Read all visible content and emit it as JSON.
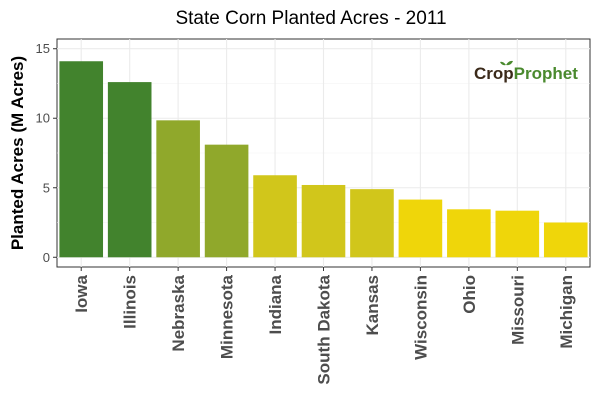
{
  "chart_data": {
    "type": "bar",
    "title": "State Corn Planted Acres - 2011",
    "xlabel": "",
    "ylabel": "Planted Acres (M Acres)",
    "categories": [
      "Iowa",
      "Illinois",
      "Nebraska",
      "Minnesota",
      "Indiana",
      "South Dakota",
      "Kansas",
      "Wisconsin",
      "Ohio",
      "Missouri",
      "Michigan"
    ],
    "values": [
      14.1,
      12.6,
      9.85,
      8.1,
      5.9,
      5.2,
      4.9,
      4.15,
      3.45,
      3.35,
      2.5
    ],
    "yticks": [
      0,
      5,
      10,
      15
    ],
    "ylim": [
      -0.7,
      15.7
    ],
    "grid": true,
    "legend": "none",
    "bar_colors": [
      "#42832d",
      "#42832d",
      "#90a82b",
      "#90a82b",
      "#d1c61b",
      "#d1c61b",
      "#d1c61b",
      "#efd60a",
      "#efd60a",
      "#efd60a",
      "#efd60a"
    ]
  },
  "logo": {
    "part1": "Crop",
    "part2": "Prophet",
    "icon": "sprout-icon"
  }
}
